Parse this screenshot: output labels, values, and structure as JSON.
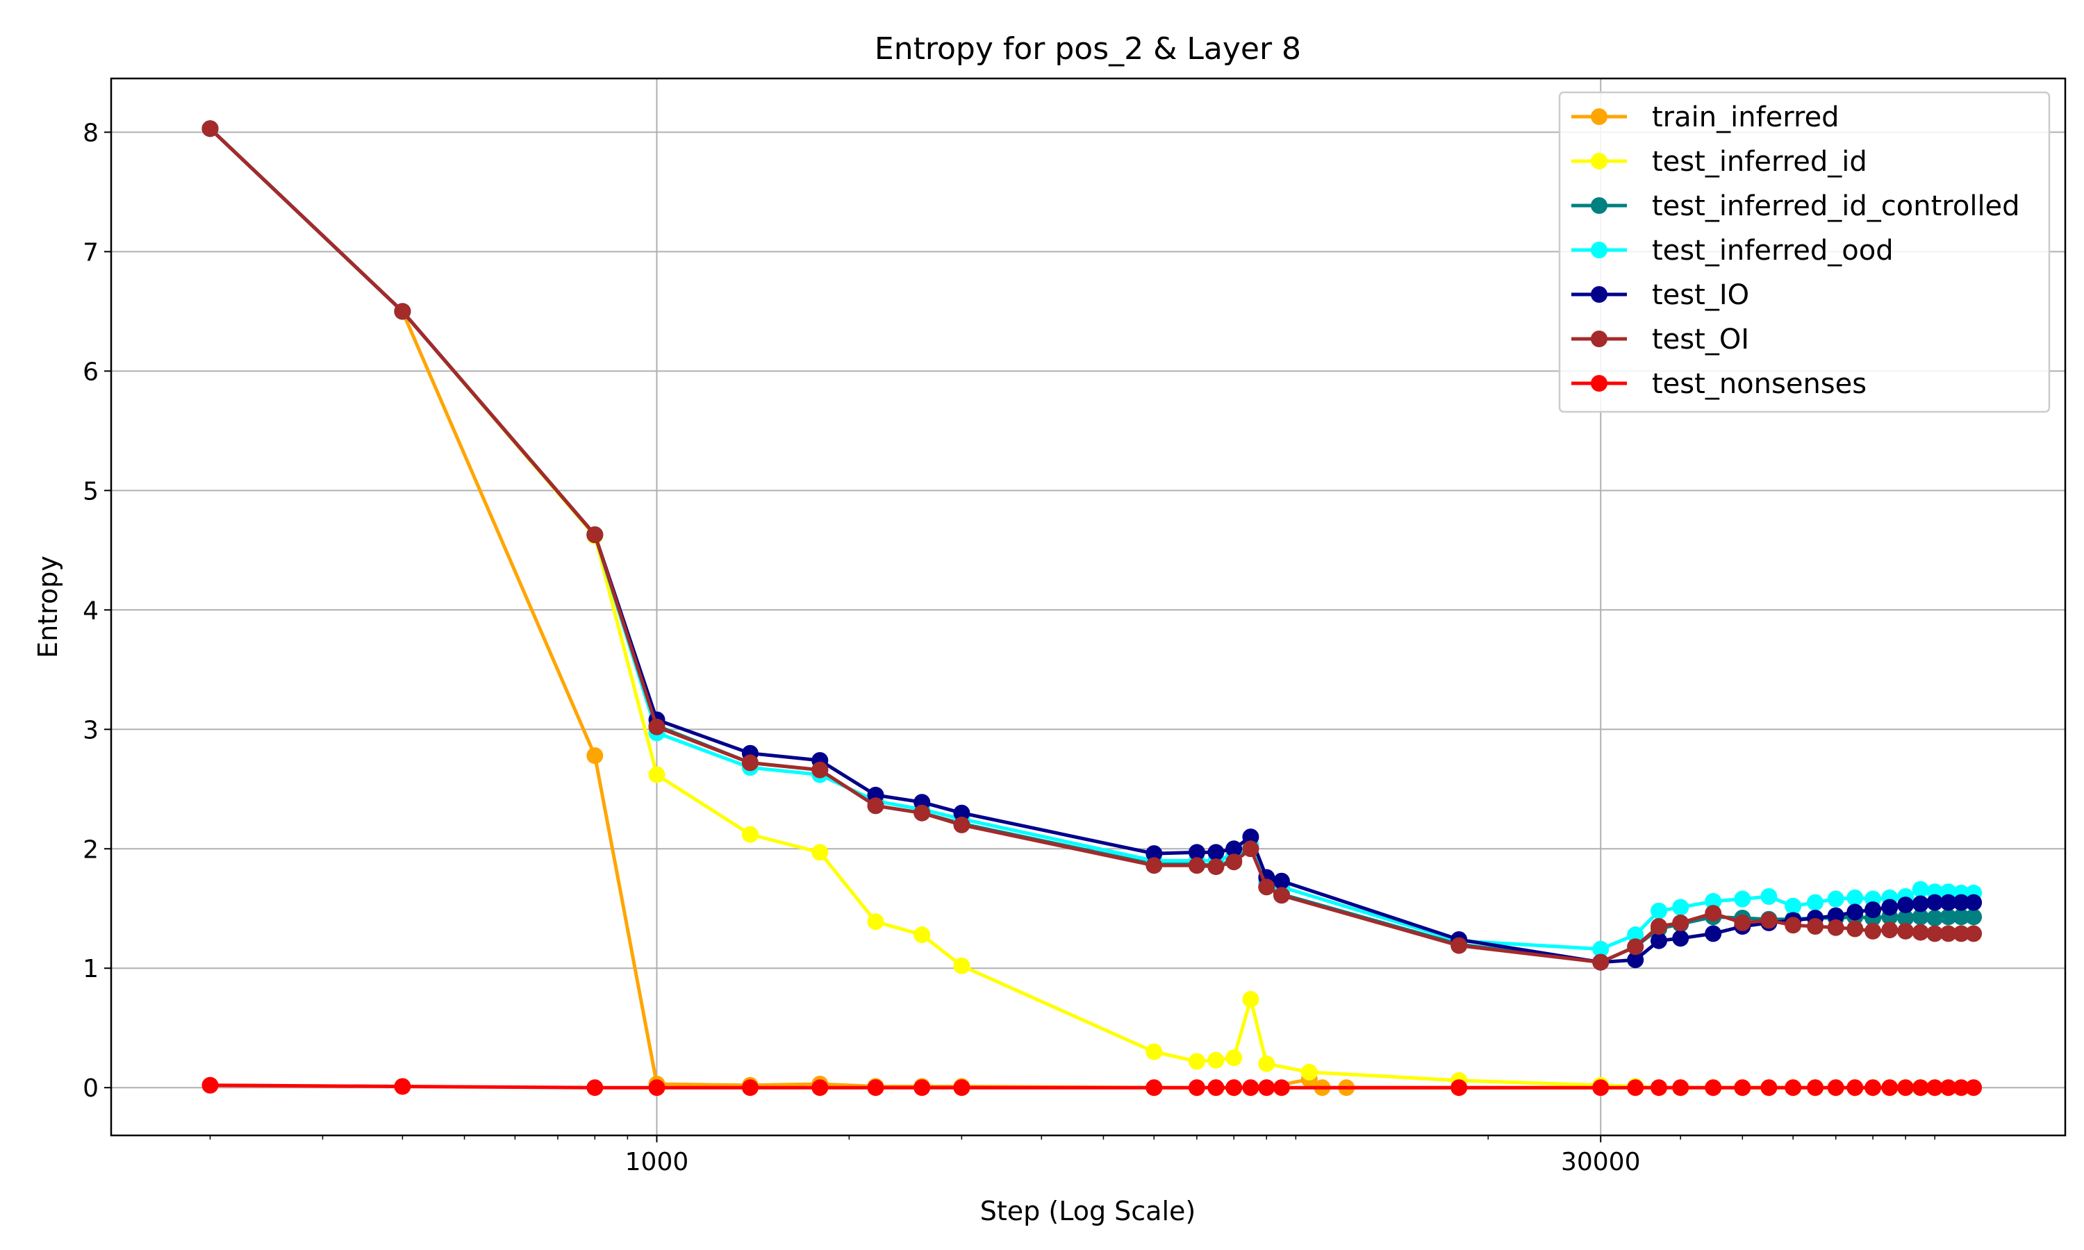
{
  "chart_data": {
    "type": "line",
    "title": "Entropy for pos_2 & Layer 8",
    "xlabel": "Step (Log Scale)",
    "ylabel": "Entropy",
    "xscale": "log",
    "xlim": [
      140,
      160000
    ],
    "ylim": [
      -0.4,
      8.45
    ],
    "xticks": [
      1000,
      30000
    ],
    "xticklabels": [
      "1000",
      "30000"
    ],
    "yticks": [
      0,
      1,
      2,
      3,
      4,
      5,
      6,
      7,
      8
    ],
    "yticklabels": [
      "0",
      "1",
      "2",
      "3",
      "4",
      "5",
      "6",
      "7",
      "8"
    ],
    "grid": true,
    "legend_position": "top-right",
    "x": [
      200,
      800,
      1800,
      3200,
      5000,
      7000,
      9500,
      12600,
      16000,
      39000,
      44000,
      50000,
      56000,
      60000,
      64000,
      70000,
      72000,
      76000,
      80000
    ],
    "series": [
      {
        "name": "train_inferred",
        "color": "#FFA500",
        "points": [
          [
            200,
            8.03
          ],
          [
            400,
            6.5
          ],
          [
            800,
            2.78
          ],
          [
            1000,
            0.03
          ],
          [
            1400,
            0.02
          ],
          [
            1800,
            0.03
          ],
          [
            2200,
            0.01
          ],
          [
            2600,
            0.01
          ],
          [
            3000,
            0.01
          ],
          [
            6000,
            0.0
          ],
          [
            7000,
            0.0
          ],
          [
            7500,
            0.0
          ],
          [
            8000,
            0.0
          ],
          [
            8500,
            0.0
          ],
          [
            9000,
            0.0
          ],
          [
            10500,
            0.07
          ],
          [
            11000,
            0.0
          ],
          [
            12000,
            0.0
          ],
          [
            18000,
            0.0
          ],
          [
            30000,
            0.0
          ],
          [
            34000,
            0.0
          ],
          [
            37000,
            0.0
          ],
          [
            40000,
            0.0
          ],
          [
            45000,
            0.0
          ],
          [
            50000,
            0.0
          ],
          [
            55000,
            0.0
          ],
          [
            60000,
            0.0
          ],
          [
            65000,
            0.0
          ],
          [
            70000,
            0.0
          ],
          [
            75000,
            0.0
          ],
          [
            80000,
            0.0
          ],
          [
            85000,
            0.0
          ],
          [
            90000,
            0.0
          ],
          [
            95000,
            0.0
          ],
          [
            100000,
            0.0
          ],
          [
            105000,
            0.0
          ],
          [
            110000,
            0.0
          ],
          [
            115000,
            0.0
          ]
        ]
      },
      {
        "name": "test_inferred_id",
        "color": "#FFFF00",
        "points": [
          [
            200,
            8.03
          ],
          [
            400,
            6.5
          ],
          [
            800,
            4.62
          ],
          [
            1000,
            2.62
          ],
          [
            1400,
            2.12
          ],
          [
            1800,
            1.97
          ],
          [
            2200,
            1.39
          ],
          [
            2600,
            1.28
          ],
          [
            3000,
            1.02
          ],
          [
            6000,
            0.3
          ],
          [
            7000,
            0.22
          ],
          [
            7500,
            0.23
          ],
          [
            8000,
            0.25
          ],
          [
            8500,
            0.74
          ],
          [
            9000,
            0.2
          ],
          [
            10500,
            0.13
          ],
          [
            18000,
            0.06
          ],
          [
            30000,
            0.02
          ],
          [
            34000,
            0.01
          ],
          [
            37000,
            0.0
          ],
          [
            40000,
            0.0
          ],
          [
            45000,
            0.0
          ],
          [
            50000,
            0.0
          ],
          [
            55000,
            0.0
          ],
          [
            60000,
            0.0
          ],
          [
            65000,
            0.0
          ],
          [
            70000,
            0.0
          ],
          [
            75000,
            0.0
          ],
          [
            80000,
            0.0
          ],
          [
            85000,
            0.0
          ],
          [
            90000,
            0.0
          ],
          [
            95000,
            0.0
          ],
          [
            100000,
            0.0
          ],
          [
            105000,
            0.0
          ],
          [
            110000,
            0.0
          ],
          [
            115000,
            0.0
          ]
        ]
      },
      {
        "name": "test_inferred_id_controlled",
        "color": "#008080",
        "points": [
          [
            200,
            8.03
          ],
          [
            400,
            6.5
          ],
          [
            800,
            4.63
          ],
          [
            1000,
            3.03
          ],
          [
            1400,
            2.72
          ],
          [
            1800,
            2.66
          ],
          [
            2200,
            2.36
          ],
          [
            2600,
            2.3
          ],
          [
            3000,
            2.21
          ],
          [
            6000,
            1.87
          ],
          [
            7000,
            1.87
          ],
          [
            7500,
            1.86
          ],
          [
            8000,
            1.9
          ],
          [
            8500,
            2.01
          ],
          [
            9000,
            1.68
          ],
          [
            9500,
            1.62
          ],
          [
            18000,
            1.2
          ],
          [
            30000,
            1.05
          ],
          [
            34000,
            1.18
          ],
          [
            37000,
            1.33
          ],
          [
            40000,
            1.37
          ],
          [
            45000,
            1.43
          ],
          [
            50000,
            1.42
          ],
          [
            55000,
            1.41
          ],
          [
            60000,
            1.41
          ],
          [
            65000,
            1.42
          ],
          [
            70000,
            1.42
          ],
          [
            75000,
            1.43
          ],
          [
            80000,
            1.42
          ],
          [
            85000,
            1.43
          ],
          [
            90000,
            1.42
          ],
          [
            95000,
            1.43
          ],
          [
            100000,
            1.42
          ],
          [
            105000,
            1.43
          ],
          [
            110000,
            1.43
          ],
          [
            115000,
            1.43
          ]
        ]
      },
      {
        "name": "test_inferred_ood",
        "color": "#00FFFF",
        "points": [
          [
            200,
            8.03
          ],
          [
            400,
            6.5
          ],
          [
            800,
            4.63
          ],
          [
            1000,
            2.97
          ],
          [
            1400,
            2.68
          ],
          [
            1800,
            2.62
          ],
          [
            2200,
            2.4
          ],
          [
            2600,
            2.33
          ],
          [
            3000,
            2.25
          ],
          [
            6000,
            1.9
          ],
          [
            7000,
            1.9
          ],
          [
            7500,
            1.9
          ],
          [
            8000,
            1.95
          ],
          [
            8500,
            2.03
          ],
          [
            9000,
            1.72
          ],
          [
            9500,
            1.68
          ],
          [
            18000,
            1.23
          ],
          [
            30000,
            1.16
          ],
          [
            34000,
            1.28
          ],
          [
            37000,
            1.48
          ],
          [
            40000,
            1.51
          ],
          [
            45000,
            1.56
          ],
          [
            50000,
            1.58
          ],
          [
            55000,
            1.6
          ],
          [
            60000,
            1.52
          ],
          [
            65000,
            1.55
          ],
          [
            70000,
            1.58
          ],
          [
            75000,
            1.59
          ],
          [
            80000,
            1.58
          ],
          [
            85000,
            1.59
          ],
          [
            90000,
            1.6
          ],
          [
            95000,
            1.66
          ],
          [
            100000,
            1.64
          ],
          [
            105000,
            1.64
          ],
          [
            110000,
            1.63
          ],
          [
            115000,
            1.63
          ]
        ]
      },
      {
        "name": "test_IO",
        "color": "#00008B",
        "points": [
          [
            200,
            8.03
          ],
          [
            400,
            6.5
          ],
          [
            800,
            4.63
          ],
          [
            1000,
            3.08
          ],
          [
            1400,
            2.8
          ],
          [
            1800,
            2.74
          ],
          [
            2200,
            2.45
          ],
          [
            2600,
            2.39
          ],
          [
            3000,
            2.3
          ],
          [
            6000,
            1.96
          ],
          [
            7000,
            1.97
          ],
          [
            7500,
            1.97
          ],
          [
            8000,
            2.0
          ],
          [
            8500,
            2.1
          ],
          [
            9000,
            1.76
          ],
          [
            9500,
            1.73
          ],
          [
            18000,
            1.24
          ],
          [
            30000,
            1.05
          ],
          [
            34000,
            1.07
          ],
          [
            37000,
            1.23
          ],
          [
            40000,
            1.25
          ],
          [
            45000,
            1.29
          ],
          [
            50000,
            1.35
          ],
          [
            55000,
            1.38
          ],
          [
            60000,
            1.4
          ],
          [
            65000,
            1.42
          ],
          [
            70000,
            1.44
          ],
          [
            75000,
            1.47
          ],
          [
            80000,
            1.49
          ],
          [
            85000,
            1.51
          ],
          [
            90000,
            1.53
          ],
          [
            95000,
            1.54
          ],
          [
            100000,
            1.55
          ],
          [
            105000,
            1.55
          ],
          [
            110000,
            1.55
          ],
          [
            115000,
            1.55
          ]
        ]
      },
      {
        "name": "test_OI",
        "color": "#A52A2A",
        "points": [
          [
            200,
            8.03
          ],
          [
            400,
            6.5
          ],
          [
            800,
            4.63
          ],
          [
            1000,
            3.02
          ],
          [
            1400,
            2.72
          ],
          [
            1800,
            2.66
          ],
          [
            2200,
            2.36
          ],
          [
            2600,
            2.3
          ],
          [
            3000,
            2.2
          ],
          [
            6000,
            1.86
          ],
          [
            7000,
            1.86
          ],
          [
            7500,
            1.85
          ],
          [
            8000,
            1.89
          ],
          [
            8500,
            2.0
          ],
          [
            9000,
            1.68
          ],
          [
            9500,
            1.61
          ],
          [
            18000,
            1.19
          ],
          [
            30000,
            1.05
          ],
          [
            34000,
            1.18
          ],
          [
            37000,
            1.35
          ],
          [
            40000,
            1.38
          ],
          [
            45000,
            1.46
          ],
          [
            50000,
            1.38
          ],
          [
            55000,
            1.4
          ],
          [
            60000,
            1.36
          ],
          [
            65000,
            1.35
          ],
          [
            70000,
            1.34
          ],
          [
            75000,
            1.33
          ],
          [
            80000,
            1.31
          ],
          [
            85000,
            1.32
          ],
          [
            90000,
            1.31
          ],
          [
            95000,
            1.3
          ],
          [
            100000,
            1.29
          ],
          [
            105000,
            1.29
          ],
          [
            110000,
            1.29
          ],
          [
            115000,
            1.29
          ]
        ]
      },
      {
        "name": "test_nonsenses",
        "color": "#FF0000",
        "points": [
          [
            200,
            0.02
          ],
          [
            400,
            0.01
          ],
          [
            800,
            0.0
          ],
          [
            1000,
            0.0
          ],
          [
            1400,
            0.0
          ],
          [
            1800,
            0.0
          ],
          [
            2200,
            0.0
          ],
          [
            2600,
            0.0
          ],
          [
            3000,
            0.0
          ],
          [
            6000,
            0.0
          ],
          [
            7000,
            0.0
          ],
          [
            7500,
            0.0
          ],
          [
            8000,
            0.0
          ],
          [
            8500,
            0.0
          ],
          [
            9000,
            0.0
          ],
          [
            9500,
            0.0
          ],
          [
            18000,
            0.0
          ],
          [
            30000,
            0.0
          ],
          [
            34000,
            0.0
          ],
          [
            37000,
            0.0
          ],
          [
            40000,
            0.0
          ],
          [
            45000,
            0.0
          ],
          [
            50000,
            0.0
          ],
          [
            55000,
            0.0
          ],
          [
            60000,
            0.0
          ],
          [
            65000,
            0.0
          ],
          [
            70000,
            0.0
          ],
          [
            75000,
            0.0
          ],
          [
            80000,
            0.0
          ],
          [
            85000,
            0.0
          ],
          [
            90000,
            0.0
          ],
          [
            95000,
            0.0
          ],
          [
            100000,
            0.0
          ],
          [
            105000,
            0.0
          ],
          [
            110000,
            0.0
          ],
          [
            115000,
            0.0
          ]
        ]
      }
    ]
  }
}
